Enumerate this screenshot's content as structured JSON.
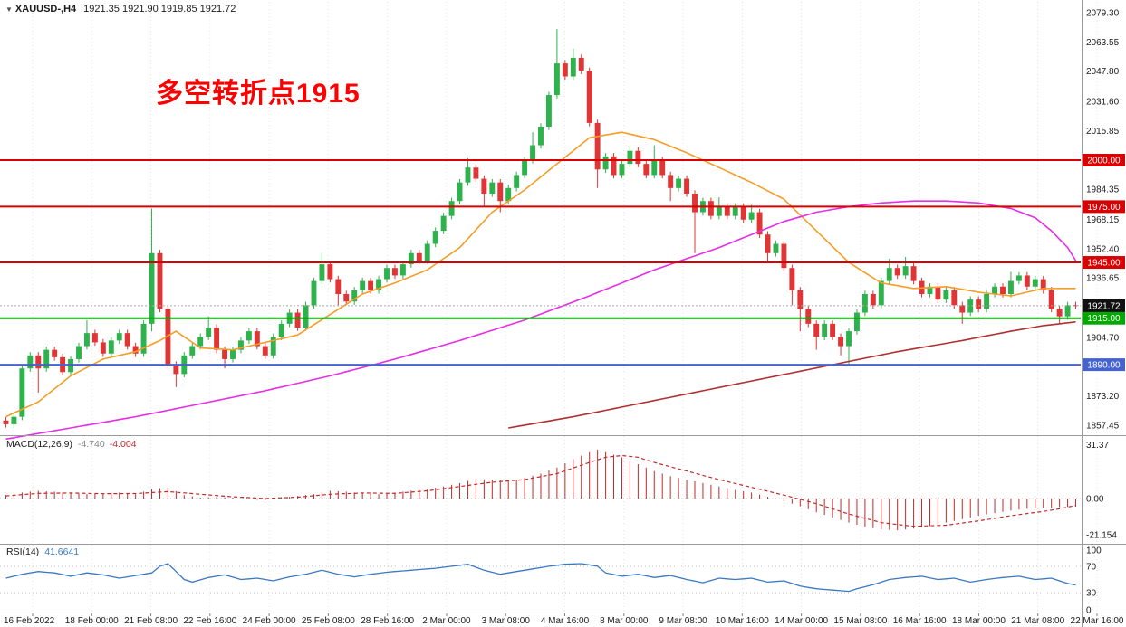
{
  "header": {
    "collapse_icon": "▼",
    "symbol_period": "XAUUSD-,H4",
    "ohlc": "1921.35 1921.90 1919.85 1921.72"
  },
  "annotation": {
    "text": "多空转折点1915",
    "color": "#fe0000"
  },
  "indicators": {
    "macd": {
      "name": "MACD(12,26,9)",
      "main_value": "-4.740",
      "signal_value": "-4.004"
    },
    "rsi": {
      "name": "RSI(14)",
      "value": "41.6641"
    }
  },
  "colors": {
    "up": "#2db24c",
    "down": "#e13434",
    "ma_fast": "#f59d26",
    "ma_medium": "#e62ee6",
    "ma_slow": "#b03030",
    "level_red": "#d80000",
    "level_green": "#00a800",
    "level_blue": "#4663cd",
    "current_badge": "#111111",
    "macd_red": "#c22a2a",
    "rsi_blue": "#3a78c2",
    "grid": "#e3e3e3",
    "separator": "#9a9a9a",
    "scale_text": "#1a1a1a"
  },
  "chart_data": {
    "type": "candlestick",
    "symbol": "XAUUSD",
    "timeframe": "H4",
    "price_range": [
      1857.45,
      2079.3
    ],
    "y_ticks": [
      {
        "v": 2079.3,
        "t": "2079.30"
      },
      {
        "v": 2063.55,
        "t": "2063.55"
      },
      {
        "v": 2047.8,
        "t": "2047.80"
      },
      {
        "v": 2031.6,
        "t": "2031.60"
      },
      {
        "v": 2015.85,
        "t": "2015.85"
      },
      {
        "v": 1984.35,
        "t": "1984.35"
      },
      {
        "v": 1968.15,
        "t": "1968.15"
      },
      {
        "v": 1952.4,
        "t": "1952.40"
      },
      {
        "v": 1936.65,
        "t": "1936.65"
      },
      {
        "v": 1904.7,
        "t": "1904.70"
      },
      {
        "v": 1873.2,
        "t": "1873.20"
      },
      {
        "v": 1857.45,
        "t": "1857.45"
      }
    ],
    "levels": [
      {
        "v": 2000.0,
        "t": "2000.00",
        "color": "#d80000"
      },
      {
        "v": 1975.0,
        "t": "1975.00",
        "color": "#d80000"
      },
      {
        "v": 1945.0,
        "t": "1945.00",
        "color": "#d80000"
      },
      {
        "v": 1915.0,
        "t": "1915.00",
        "color": "#00a800"
      },
      {
        "v": 1890.0,
        "t": "1890.00",
        "color": "#4663cd"
      }
    ],
    "current_price": {
      "v": 1921.72,
      "t": "1921.72"
    },
    "x_labels": [
      "16 Feb 2022",
      "18 Feb 00:00",
      "21 Feb 08:00",
      "22 Feb 16:00",
      "24 Feb 00:00",
      "25 Feb 08:00",
      "28 Feb 16:00",
      "2 Mar 00:00",
      "3 Mar 08:00",
      "4 Mar 16:00",
      "8 Mar 00:00",
      "9 Mar 08:00",
      "10 Mar 16:00",
      "14 Mar 00:00",
      "15 Mar 08:00",
      "16 Mar 16:00",
      "18 Mar 00:00",
      "21 Mar 08:00",
      "22 Mar 16:00"
    ],
    "candles": {
      "first_open": 1860,
      "wick_pad": 1.8,
      "closes": [
        1858,
        1862,
        1888,
        1895,
        1888,
        1898,
        1894,
        1886,
        1893,
        1900,
        1907,
        1902,
        1896,
        1903,
        1907,
        1900,
        1896,
        1912,
        1950,
        1920,
        1890,
        1885,
        1895,
        1900,
        1905,
        1910,
        1898,
        1893,
        1898,
        1903,
        1908,
        1900,
        1895,
        1905,
        1912,
        1918,
        1910,
        1922,
        1935,
        1944,
        1936,
        1928,
        1924,
        1930,
        1935,
        1930,
        1936,
        1942,
        1938,
        1944,
        1950,
        1946,
        1955,
        1962,
        1970,
        1978,
        1988,
        1996,
        1990,
        1982,
        1988,
        1978,
        1985,
        1992,
        2000,
        2008,
        2018,
        2035,
        2052,
        2045,
        2055,
        2048,
        2020,
        1995,
        2002,
        1992,
        1998,
        2005,
        1998,
        1992,
        2000,
        1992,
        1985,
        1990,
        1982,
        1972,
        1978,
        1970,
        1975,
        1970,
        1975,
        1968,
        1972,
        1960,
        1950,
        1955,
        1942,
        1930,
        1920,
        1912,
        1905,
        1912,
        1905,
        1900,
        1908,
        1918,
        1928,
        1922,
        1935,
        1942,
        1938,
        1943,
        1935,
        1928,
        1932,
        1925,
        1930,
        1922,
        1918,
        1925,
        1920,
        1928,
        1932,
        1928,
        1935,
        1938,
        1932,
        1936,
        1930,
        1920,
        1916,
        1922,
        1921.72
      ],
      "high_overrides": {
        "10": 1914,
        "18": 1974,
        "25": 1916,
        "39": 1950,
        "57": 2001,
        "65": 2015,
        "68": 2070.5,
        "70": 2060,
        "80": 2008,
        "88": 1980,
        "92": 1976,
        "109": 1947,
        "111": 1948,
        "124": 1940
      },
      "low_overrides": {
        "4": 1875,
        "18": 1908,
        "21": 1878,
        "27": 1888,
        "41": 1922,
        "59": 1975,
        "61": 1972,
        "73": 1985,
        "82": 1978,
        "85": 1950,
        "94": 1945,
        "97": 1922,
        "98": 1908,
        "100": 1898,
        "103": 1895,
        "104": 1890,
        "118": 1912,
        "130": 1912
      }
    },
    "moving_averages": [
      {
        "name": "ma-fast",
        "color": "#f59d26",
        "points": [
          [
            0,
            1862
          ],
          [
            4,
            1870
          ],
          [
            8,
            1884
          ],
          [
            12,
            1893
          ],
          [
            16,
            1897
          ],
          [
            19,
            1903
          ],
          [
            21,
            1908
          ],
          [
            24,
            1899
          ],
          [
            28,
            1898
          ],
          [
            32,
            1902
          ],
          [
            36,
            1906
          ],
          [
            40,
            1917
          ],
          [
            44,
            1928
          ],
          [
            48,
            1934
          ],
          [
            52,
            1941
          ],
          [
            56,
            1953
          ],
          [
            60,
            1972
          ],
          [
            64,
            1984
          ],
          [
            68,
            1998
          ],
          [
            72,
            2012
          ],
          [
            76,
            2015
          ],
          [
            80,
            2011
          ],
          [
            84,
            2004
          ],
          [
            88,
            1996
          ],
          [
            92,
            1988
          ],
          [
            96,
            1979
          ],
          [
            100,
            1962
          ],
          [
            104,
            1945
          ],
          [
            108,
            1934
          ],
          [
            112,
            1931
          ],
          [
            116,
            1932
          ],
          [
            120,
            1929
          ],
          [
            124,
            1927
          ],
          [
            128,
            1931
          ],
          [
            132,
            1931
          ]
        ]
      },
      {
        "name": "ma-medium",
        "color": "#e62ee6",
        "points": [
          [
            0,
            1850
          ],
          [
            8,
            1856
          ],
          [
            16,
            1862
          ],
          [
            24,
            1869
          ],
          [
            32,
            1876
          ],
          [
            40,
            1884
          ],
          [
            48,
            1893
          ],
          [
            56,
            1903
          ],
          [
            64,
            1914
          ],
          [
            72,
            1927
          ],
          [
            80,
            1941
          ],
          [
            88,
            1953
          ],
          [
            92,
            1960
          ],
          [
            96,
            1967
          ],
          [
            100,
            1972
          ],
          [
            104,
            1975
          ],
          [
            108,
            1977
          ],
          [
            112,
            1978
          ],
          [
            116,
            1978
          ],
          [
            120,
            1977
          ],
          [
            124,
            1974
          ],
          [
            127,
            1969
          ],
          [
            129,
            1962
          ],
          [
            131,
            1953
          ],
          [
            132,
            1946
          ]
        ]
      },
      {
        "name": "ma-slow",
        "color": "#b03030",
        "points": [
          [
            62,
            1856
          ],
          [
            70,
            1862
          ],
          [
            78,
            1869
          ],
          [
            86,
            1876
          ],
          [
            94,
            1883
          ],
          [
            102,
            1890
          ],
          [
            110,
            1897
          ],
          [
            118,
            1903
          ],
          [
            124,
            1908
          ],
          [
            128,
            1911
          ],
          [
            132,
            1913
          ]
        ]
      }
    ],
    "macd": {
      "scale_ticks": [
        {
          "v": 31.37,
          "t": "31.37"
        },
        {
          "v": 0,
          "t": "0.00"
        },
        {
          "v": -21.154,
          "t": "-21.154"
        }
      ],
      "hist": [
        [
          0,
          2
        ],
        [
          2,
          3.5
        ],
        [
          4,
          4.5
        ],
        [
          6,
          4
        ],
        [
          8,
          3
        ],
        [
          10,
          2.5
        ],
        [
          12,
          3
        ],
        [
          14,
          3.5
        ],
        [
          16,
          2.5
        ],
        [
          18,
          5.5
        ],
        [
          20,
          6.5
        ],
        [
          22,
          2
        ],
        [
          24,
          0.5
        ],
        [
          26,
          1
        ],
        [
          28,
          0.5
        ],
        [
          30,
          -0.5
        ],
        [
          32,
          -1
        ],
        [
          34,
          0.5
        ],
        [
          36,
          1.5
        ],
        [
          38,
          2.5
        ],
        [
          40,
          4.5
        ],
        [
          42,
          4
        ],
        [
          44,
          3
        ],
        [
          46,
          2.5
        ],
        [
          48,
          3.5
        ],
        [
          50,
          4.5
        ],
        [
          52,
          5.5
        ],
        [
          54,
          7
        ],
        [
          56,
          9
        ],
        [
          58,
          11.5
        ],
        [
          60,
          11
        ],
        [
          62,
          10
        ],
        [
          64,
          12
        ],
        [
          66,
          14.5
        ],
        [
          68,
          18
        ],
        [
          70,
          23
        ],
        [
          72,
          27
        ],
        [
          73,
          28.5
        ],
        [
          74,
          27
        ],
        [
          76,
          24
        ],
        [
          78,
          20
        ],
        [
          80,
          16
        ],
        [
          82,
          13
        ],
        [
          84,
          11
        ],
        [
          86,
          9
        ],
        [
          88,
          7
        ],
        [
          90,
          5
        ],
        [
          92,
          3.5
        ],
        [
          94,
          1
        ],
        [
          96,
          -1.5
        ],
        [
          98,
          -4.5
        ],
        [
          100,
          -8
        ],
        [
          102,
          -11
        ],
        [
          104,
          -14
        ],
        [
          106,
          -16.5
        ],
        [
          108,
          -18
        ],
        [
          110,
          -18.5
        ],
        [
          112,
          -17.5
        ],
        [
          114,
          -16
        ],
        [
          116,
          -14
        ],
        [
          118,
          -12
        ],
        [
          120,
          -10
        ],
        [
          122,
          -8.5
        ],
        [
          124,
          -7
        ],
        [
          126,
          -6
        ],
        [
          128,
          -5.5
        ],
        [
          130,
          -5
        ],
        [
          132,
          -4.74
        ]
      ],
      "signal": [
        [
          0,
          1.5
        ],
        [
          4,
          3
        ],
        [
          8,
          3.2
        ],
        [
          12,
          2.8
        ],
        [
          16,
          2.9
        ],
        [
          20,
          4
        ],
        [
          24,
          2.5
        ],
        [
          28,
          1
        ],
        [
          32,
          0
        ],
        [
          36,
          0.8
        ],
        [
          40,
          2.5
        ],
        [
          44,
          3.2
        ],
        [
          48,
          3
        ],
        [
          52,
          4.5
        ],
        [
          56,
          7
        ],
        [
          60,
          9.5
        ],
        [
          64,
          11
        ],
        [
          68,
          14.5
        ],
        [
          72,
          21
        ],
        [
          74,
          24
        ],
        [
          76,
          25
        ],
        [
          78,
          24
        ],
        [
          80,
          21
        ],
        [
          84,
          16
        ],
        [
          88,
          11
        ],
        [
          92,
          6.5
        ],
        [
          96,
          2
        ],
        [
          100,
          -3
        ],
        [
          104,
          -9
        ],
        [
          108,
          -14
        ],
        [
          112,
          -16.2
        ],
        [
          116,
          -15.5
        ],
        [
          120,
          -13
        ],
        [
          124,
          -10
        ],
        [
          128,
          -7.5
        ],
        [
          130,
          -6
        ],
        [
          132,
          -4.0
        ]
      ]
    },
    "rsi": {
      "scale_ticks": [
        {
          "v": 100,
          "t": "100"
        },
        {
          "v": 70,
          "t": "70"
        },
        {
          "v": 30,
          "t": "30"
        },
        {
          "v": 0,
          "t": "0"
        }
      ],
      "levels": [
        70,
        30
      ],
      "points": [
        [
          0,
          52
        ],
        [
          2,
          58
        ],
        [
          4,
          62
        ],
        [
          6,
          60
        ],
        [
          8,
          55
        ],
        [
          10,
          60
        ],
        [
          12,
          57
        ],
        [
          14,
          52
        ],
        [
          16,
          56
        ],
        [
          18,
          60
        ],
        [
          19,
          70
        ],
        [
          20,
          74
        ],
        [
          21,
          62
        ],
        [
          22,
          50
        ],
        [
          23,
          46
        ],
        [
          25,
          53
        ],
        [
          27,
          57
        ],
        [
          29,
          50
        ],
        [
          31,
          52
        ],
        [
          33,
          48
        ],
        [
          35,
          54
        ],
        [
          37,
          58
        ],
        [
          39,
          64
        ],
        [
          41,
          58
        ],
        [
          43,
          54
        ],
        [
          45,
          58
        ],
        [
          47,
          61
        ],
        [
          49,
          63
        ],
        [
          51,
          65
        ],
        [
          53,
          67
        ],
        [
          55,
          70
        ],
        [
          57,
          73
        ],
        [
          59,
          64
        ],
        [
          61,
          58
        ],
        [
          63,
          62
        ],
        [
          65,
          66
        ],
        [
          67,
          70
        ],
        [
          69,
          73
        ],
        [
          71,
          74
        ],
        [
          73,
          70
        ],
        [
          74,
          60
        ],
        [
          76,
          55
        ],
        [
          78,
          58
        ],
        [
          80,
          53
        ],
        [
          82,
          56
        ],
        [
          84,
          50
        ],
        [
          86,
          45
        ],
        [
          88,
          52
        ],
        [
          90,
          50
        ],
        [
          92,
          52
        ],
        [
          94,
          46
        ],
        [
          96,
          48
        ],
        [
          98,
          40
        ],
        [
          100,
          36
        ],
        [
          102,
          34
        ],
        [
          104,
          32
        ],
        [
          105,
          36
        ],
        [
          107,
          42
        ],
        [
          109,
          50
        ],
        [
          111,
          53
        ],
        [
          113,
          55
        ],
        [
          115,
          50
        ],
        [
          117,
          52
        ],
        [
          119,
          46
        ],
        [
          121,
          50
        ],
        [
          123,
          53
        ],
        [
          125,
          55
        ],
        [
          127,
          50
        ],
        [
          129,
          52
        ],
        [
          131,
          44
        ],
        [
          132,
          41.66
        ]
      ]
    }
  }
}
